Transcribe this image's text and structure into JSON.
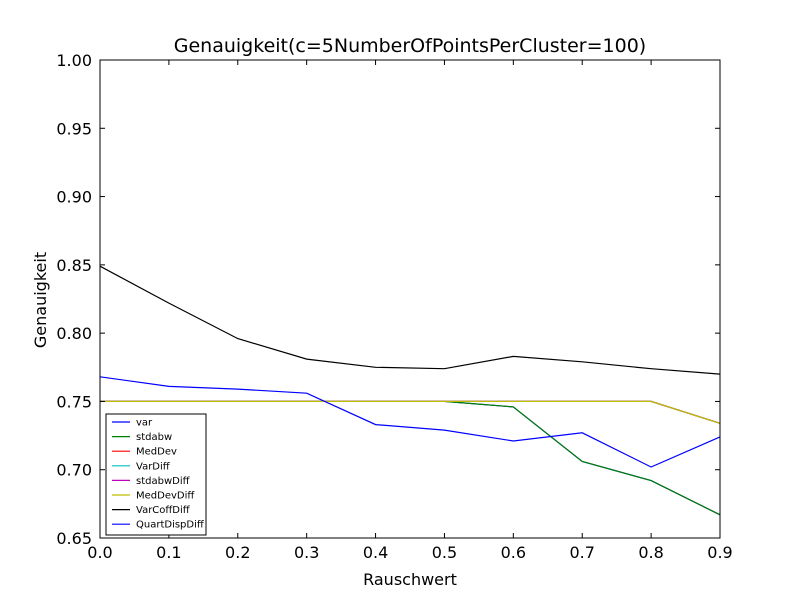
{
  "chart_data": {
    "type": "line",
    "title": "Genauigkeit(c=5NumberOfPointsPerCluster=100)",
    "xlabel": "Rauschwert",
    "ylabel": "Genauigkeit",
    "xlim": [
      0.0,
      0.9
    ],
    "ylim": [
      0.65,
      1.0
    ],
    "xticks": [
      "0.0",
      "0.1",
      "0.2",
      "0.3",
      "0.4",
      "0.5",
      "0.6",
      "0.7",
      "0.8",
      "0.9"
    ],
    "yticks": [
      "0.65",
      "0.70",
      "0.75",
      "0.80",
      "0.85",
      "0.90",
      "0.95",
      "1.00"
    ],
    "grid": false,
    "legend_position": "lower-left",
    "x": [
      0.0,
      0.1,
      0.2,
      0.3,
      0.4,
      0.5,
      0.6,
      0.7,
      0.8,
      0.9
    ],
    "series": [
      {
        "name": "var",
        "color": "#0000ff",
        "values": [
          0.75,
          0.75,
          0.75,
          0.75,
          0.75,
          0.75,
          0.746,
          0.706,
          0.692,
          0.667
        ]
      },
      {
        "name": "stdabw",
        "color": "#008000",
        "values": [
          0.75,
          0.75,
          0.75,
          0.75,
          0.75,
          0.75,
          0.746,
          0.706,
          0.692,
          0.667
        ]
      },
      {
        "name": "MedDev",
        "color": "#ff0000",
        "values": [
          0.75,
          0.75,
          0.75,
          0.75,
          0.75,
          0.75,
          0.75,
          0.75,
          0.75,
          0.734
        ]
      },
      {
        "name": "VarDiff",
        "color": "#00bfbf",
        "values": [
          0.75,
          0.75,
          0.75,
          0.75,
          0.75,
          0.75,
          0.75,
          0.75,
          0.75,
          0.734
        ]
      },
      {
        "name": "stdabwDiff",
        "color": "#bf00bf",
        "values": [
          0.75,
          0.75,
          0.75,
          0.75,
          0.75,
          0.75,
          0.75,
          0.75,
          0.75,
          0.734
        ]
      },
      {
        "name": "MedDevDiff",
        "color": "#bfbf00",
        "values": [
          0.75,
          0.75,
          0.75,
          0.75,
          0.75,
          0.75,
          0.75,
          0.75,
          0.75,
          0.734
        ]
      },
      {
        "name": "VarCoffDiff",
        "color": "#000000",
        "values": [
          0.849,
          0.822,
          0.796,
          0.781,
          0.775,
          0.774,
          0.783,
          0.779,
          0.774,
          0.77
        ]
      },
      {
        "name": "QuartDispDiff",
        "color": "#0000ff",
        "values": [
          0.768,
          0.761,
          0.759,
          0.756,
          0.733,
          0.729,
          0.721,
          0.727,
          0.702,
          0.724
        ]
      }
    ]
  }
}
